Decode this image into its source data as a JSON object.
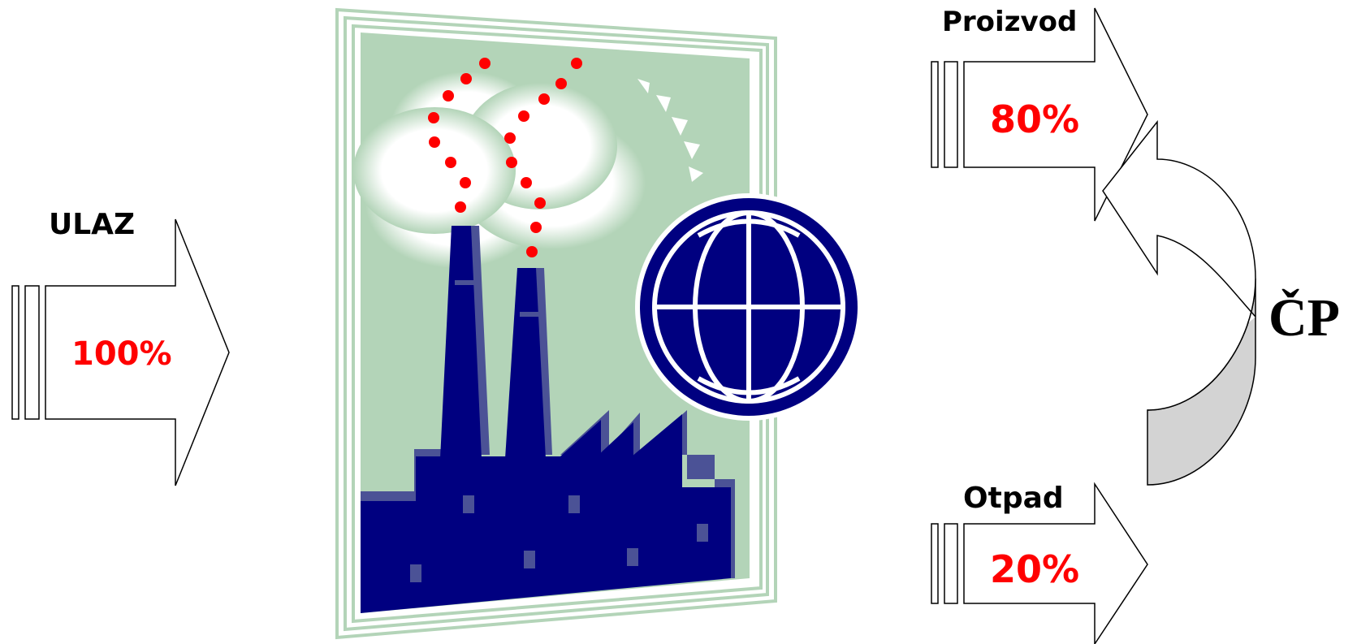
{
  "input": {
    "label": "ULAZ",
    "percent": "100%"
  },
  "outputs": {
    "product": {
      "label": "Proizvod",
      "percent": "80%"
    },
    "waste": {
      "label": "Otpad",
      "percent": "20%"
    }
  },
  "cycle_label": "ČP",
  "colors": {
    "percent_text": "#ff0000",
    "factory_navy": "#000080",
    "factory_shade": "#4b5296",
    "panel_green": "#b3d4b8",
    "smoke_dots": "#ff0000",
    "curved_arrow_fill": "#d3d3d3"
  },
  "icons": [
    "factory-illustration",
    "globe-icon",
    "sun-icon",
    "smoke-cloud"
  ]
}
